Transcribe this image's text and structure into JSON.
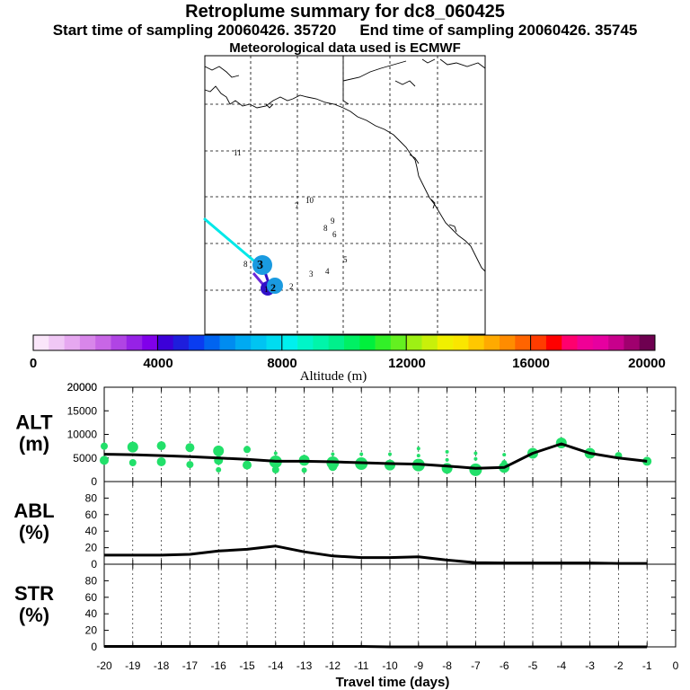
{
  "header": {
    "title": "Retroplume summary for dc8_060425",
    "start_label": "Start time of sampling 20060426. 35720",
    "end_label": "End time of sampling 20060426. 35745",
    "met_label": "Meteorological data used is ECMWF"
  },
  "map": {
    "day_markers": [
      "1",
      "2",
      "3",
      "4",
      "5",
      "6",
      "7",
      "8",
      "9",
      "10",
      "11"
    ],
    "trajectory_colors": [
      "#00e8e8",
      "#6a28d8",
      "#3010c8",
      "#1a9ae0"
    ]
  },
  "colorbar": {
    "title": "Altitude (m)",
    "tick_labels": [
      "0",
      "4000",
      "8000",
      "12000",
      "16000",
      "20000"
    ],
    "colors": [
      "#fae6fa",
      "#f0c8f5",
      "#e6a8f0",
      "#d886ea",
      "#c866e6",
      "#b044e4",
      "#9622e6",
      "#8000ea",
      "#3c00d8",
      "#1e1edc",
      "#0a3cf0",
      "#0064f0",
      "#008cf0",
      "#00aaf2",
      "#00c4f2",
      "#00dcf0",
      "#00f0ee",
      "#00f5c8",
      "#00f5aa",
      "#00f08c",
      "#00f064",
      "#00f03c",
      "#32f028",
      "#64f020",
      "#9ef014",
      "#c8f00a",
      "#f0f000",
      "#fae600",
      "#ffc800",
      "#ffaa00",
      "#ff8c00",
      "#ff6400",
      "#ff3c00",
      "#ff0000",
      "#ff006e",
      "#f00096",
      "#e600a0",
      "#c8008c",
      "#a0006e",
      "#6e0050"
    ]
  },
  "chart_data": [
    {
      "type": "line",
      "name": "alt-panel",
      "ylabel": "ALT\n(m)",
      "ylim": [
        0,
        20000
      ],
      "yticks": [
        "0",
        "5000",
        "10000",
        "15000",
        "20000"
      ],
      "x": [
        -20,
        -19,
        -18,
        -17,
        -16,
        -15,
        -14,
        -13,
        -12,
        -11,
        -10,
        -9,
        -8,
        -7,
        -6,
        -5,
        -4,
        -3,
        -2,
        -1
      ],
      "values": [
        5800,
        5700,
        5500,
        5300,
        5000,
        4700,
        4300,
        4300,
        4200,
        4000,
        3800,
        3700,
        3300,
        2800,
        3000,
        6000,
        8000,
        6000,
        5000,
        4300
      ],
      "scatter_color": "#22e06a",
      "scatter": [
        {
          "x": -20,
          "y": 7500,
          "s": 4
        },
        {
          "x": -20,
          "y": 4500,
          "s": 5
        },
        {
          "x": -19,
          "y": 7300,
          "s": 6
        },
        {
          "x": -19,
          "y": 4000,
          "s": 4
        },
        {
          "x": -18,
          "y": 7600,
          "s": 5
        },
        {
          "x": -18,
          "y": 4200,
          "s": 5
        },
        {
          "x": -17,
          "y": 7200,
          "s": 5
        },
        {
          "x": -17,
          "y": 3600,
          "s": 4
        },
        {
          "x": -16,
          "y": 6500,
          "s": 6
        },
        {
          "x": -16,
          "y": 4500,
          "s": 5
        },
        {
          "x": -16,
          "y": 2500,
          "s": 3
        },
        {
          "x": -15,
          "y": 6800,
          "s": 4
        },
        {
          "x": -15,
          "y": 3500,
          "s": 5
        },
        {
          "x": -14,
          "y": 6000,
          "s": 2
        },
        {
          "x": -14,
          "y": 4200,
          "s": 7
        },
        {
          "x": -14,
          "y": 2500,
          "s": 4
        },
        {
          "x": -13,
          "y": 5300,
          "s": 2
        },
        {
          "x": -13,
          "y": 4500,
          "s": 6
        },
        {
          "x": -13,
          "y": 2400,
          "s": 3
        },
        {
          "x": -12,
          "y": 5800,
          "s": 2
        },
        {
          "x": -12,
          "y": 4000,
          "s": 7
        },
        {
          "x": -12,
          "y": 3200,
          "s": 5
        },
        {
          "x": -11,
          "y": 5800,
          "s": 2
        },
        {
          "x": -11,
          "y": 3800,
          "s": 7
        },
        {
          "x": -10,
          "y": 5800,
          "s": 2
        },
        {
          "x": -10,
          "y": 3500,
          "s": 6
        },
        {
          "x": -9,
          "y": 7000,
          "s": 2
        },
        {
          "x": -9,
          "y": 5500,
          "s": 2
        },
        {
          "x": -9,
          "y": 3500,
          "s": 7
        },
        {
          "x": -8,
          "y": 6300,
          "s": 2
        },
        {
          "x": -8,
          "y": 4600,
          "s": 2
        },
        {
          "x": -8,
          "y": 2800,
          "s": 6
        },
        {
          "x": -7,
          "y": 6000,
          "s": 2
        },
        {
          "x": -7,
          "y": 4800,
          "s": 2
        },
        {
          "x": -7,
          "y": 2500,
          "s": 7
        },
        {
          "x": -6,
          "y": 5700,
          "s": 2
        },
        {
          "x": -6,
          "y": 4000,
          "s": 3
        },
        {
          "x": -6,
          "y": 3000,
          "s": 6
        },
        {
          "x": -5,
          "y": 6000,
          "s": 6
        },
        {
          "x": -4,
          "y": 8200,
          "s": 6
        },
        {
          "x": -3,
          "y": 6000,
          "s": 6
        },
        {
          "x": -2,
          "y": 5500,
          "s": 4
        },
        {
          "x": -1,
          "y": 4300,
          "s": 5
        }
      ]
    },
    {
      "type": "line",
      "name": "abl-panel",
      "ylabel": "ABL\n(%)",
      "ylim": [
        0,
        100
      ],
      "yticks": [
        "0",
        "20",
        "40",
        "60",
        "80"
      ],
      "x": [
        -20,
        -19,
        -18,
        -17,
        -16,
        -15,
        -14,
        -13,
        -12,
        -11,
        -10,
        -9,
        -8,
        -7,
        -6,
        -5,
        -4,
        -3,
        -2,
        -1
      ],
      "values": [
        11,
        11,
        11,
        12,
        16,
        18,
        22,
        15,
        10,
        8,
        8,
        9,
        5,
        2,
        1.5,
        1.5,
        1.5,
        1.5,
        1,
        1
      ]
    },
    {
      "type": "line",
      "name": "str-panel",
      "ylabel": "STR\n(%)",
      "ylim": [
        0,
        100
      ],
      "yticks": [
        "0",
        "20",
        "40",
        "60",
        "80"
      ],
      "x": [
        -20,
        -19,
        -18,
        -17,
        -16,
        -15,
        -14,
        -13,
        -12,
        -11,
        -10,
        -9,
        -8,
        -7,
        -6,
        -5,
        -4,
        -3,
        -2,
        -1
      ],
      "values": [
        0.5,
        0.5,
        0.5,
        0.5,
        0.5,
        0.5,
        0.5,
        0.5,
        0.5,
        0.5,
        0,
        0,
        0,
        0,
        0,
        0,
        0,
        0,
        0,
        0
      ]
    }
  ],
  "xaxis": {
    "xlabel": "Travel time (days)",
    "tick_labels": [
      "-20",
      "-19",
      "-18",
      "-17",
      "-16",
      "-15",
      "-14",
      "-13",
      "-12",
      "-11",
      "-10",
      "-9",
      "-8",
      "-7",
      "-6",
      "-5",
      "-4",
      "-3",
      "-2",
      "-1",
      "0"
    ]
  }
}
